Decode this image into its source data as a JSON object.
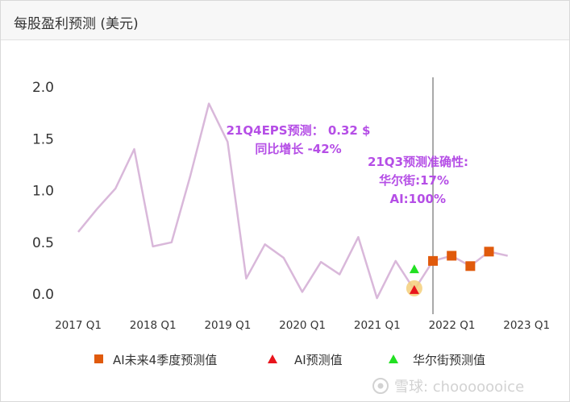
{
  "header": {
    "title": "每股盈利预测 (美元)"
  },
  "annotations": {
    "eps_line1": "21Q4EPS预测： 0.32 $",
    "eps_line2": "同比增长 -42%",
    "acc_line1": "21Q3预测准确性:",
    "acc_line2": "华尔街:17%",
    "acc_line3": "AI:100%"
  },
  "legend": {
    "forecast": "AI未来4季度预测值",
    "ai": "AI预测值",
    "wallstreet": "华尔街预测值"
  },
  "watermark": {
    "text": "雪球: chooooooice"
  },
  "colors": {
    "line": "#d9b8da",
    "forecast": "#e05a0c",
    "ai": "#e8141c",
    "wallstreet": "#22e022",
    "highlight": "#f5cf7a",
    "divider": "#a8a8a8",
    "annotation": "#b54ee6"
  },
  "chart_data": {
    "type": "line",
    "x_ticks": [
      "2017 Q1",
      "2018 Q1",
      "2019 Q1",
      "2020 Q1",
      "2021 Q1",
      "2022 Q1",
      "2023 Q1"
    ],
    "y_ticks": [
      "0.0",
      "0.5",
      "1.0",
      "1.5",
      "2.0"
    ],
    "ylim": [
      -0.05,
      2.2
    ],
    "quarters": [
      "2017 Q1",
      "2017 Q2",
      "2017 Q3",
      "2017 Q4",
      "2018 Q1",
      "2018 Q2",
      "2018 Q3",
      "2018 Q4",
      "2019 Q1",
      "2019 Q2",
      "2019 Q3",
      "2019 Q4",
      "2020 Q1",
      "2020 Q2",
      "2020 Q3",
      "2020 Q4",
      "2021 Q1",
      "2021 Q2",
      "2021 Q3",
      "2021 Q4",
      "2022 Q1",
      "2022 Q2",
      "2022 Q3",
      "2022 Q4"
    ],
    "series": [
      {
        "kind": "eps",
        "values": [
          0.6,
          0.82,
          1.02,
          1.4,
          0.46,
          0.5,
          1.14,
          1.84,
          1.47,
          0.15,
          0.48,
          0.35,
          0.02,
          0.31,
          0.19,
          0.55,
          -0.04,
          0.32,
          0.04,
          0.32,
          0.37,
          0.27,
          0.41,
          0.37
        ]
      },
      {
        "name": "AI未来4季度预测值",
        "marker": "square",
        "points": [
          {
            "x": "2021 Q4",
            "y": 0.32
          },
          {
            "x": "2022 Q1",
            "y": 0.37
          },
          {
            "x": "2022 Q2",
            "y": 0.27
          },
          {
            "x": "2022 Q3",
            "y": 0.41
          }
        ]
      },
      {
        "name": "AI预测值",
        "marker": "triangle",
        "points": [
          {
            "x": "2021 Q3",
            "y": 0.04
          }
        ]
      },
      {
        "name": "华尔街预测值",
        "marker": "triangle",
        "points": [
          {
            "x": "2021 Q3",
            "y": 0.24
          }
        ]
      }
    ],
    "highlight_point": {
      "x": "2021 Q3",
      "y": 0.04
    },
    "divider_at": "2021 Q4",
    "legend_position": "bottom",
    "grid": false
  }
}
